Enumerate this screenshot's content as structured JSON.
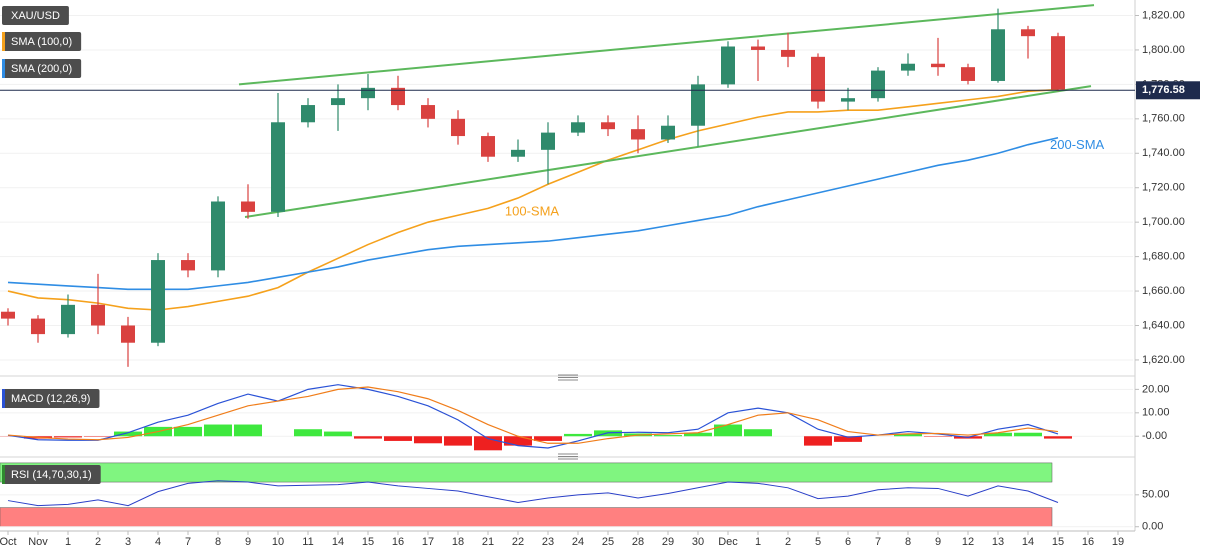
{
  "chart_data": [
    {
      "type": "candlestick",
      "title": "XAU/USD",
      "categories": [
        "Oct",
        "Nov",
        "1",
        "2",
        "3",
        "4",
        "7",
        "8",
        "9",
        "10",
        "11",
        "14",
        "15",
        "16",
        "17",
        "18",
        "21",
        "22",
        "23",
        "24",
        "25",
        "28",
        "29",
        "30",
        "Dec",
        "1",
        "2",
        "5",
        "6",
        "7",
        "8",
        "9",
        "12",
        "13",
        "14",
        "15",
        "16",
        "19"
      ],
      "open": [
        1648,
        1644,
        1635,
        1652,
        1640,
        1630,
        1678,
        1672,
        1712,
        1706,
        1758,
        1768,
        1772,
        1778,
        1768,
        1760,
        1750,
        1738,
        1742,
        1752,
        1758,
        1754,
        1748,
        1756,
        1780,
        1802,
        1800,
        1796,
        1770,
        1772,
        1788,
        1792,
        1790,
        1782,
        1812,
        1808,
        null,
        null
      ],
      "high": [
        1650,
        1646,
        1658,
        1670,
        1645,
        1682,
        1682,
        1715,
        1722,
        1775,
        1772,
        1780,
        1786,
        1785,
        1772,
        1765,
        1752,
        1748,
        1758,
        1762,
        1762,
        1762,
        1762,
        1785,
        1805,
        1806,
        1810,
        1798,
        1778,
        1790,
        1798,
        1807,
        1792,
        1824,
        1814,
        1810,
        null,
        null
      ],
      "low": [
        1640,
        1630,
        1633,
        1635,
        1616,
        1628,
        1668,
        1668,
        1702,
        1703,
        1755,
        1753,
        1765,
        1765,
        1755,
        1745,
        1735,
        1735,
        1722,
        1750,
        1750,
        1740,
        1746,
        1744,
        1778,
        1782,
        1790,
        1766,
        1765,
        1770,
        1785,
        1785,
        1780,
        1781,
        1795,
        1776,
        null,
        null
      ],
      "close": [
        1644,
        1635,
        1652,
        1640,
        1630,
        1678,
        1672,
        1712,
        1706,
        1758,
        1768,
        1772,
        1778,
        1768,
        1760,
        1750,
        1738,
        1742,
        1752,
        1758,
        1754,
        1748,
        1756,
        1780,
        1802,
        1800,
        1796,
        1770,
        1772,
        1788,
        1792,
        1790,
        1782,
        1812,
        1808,
        1777,
        null,
        null
      ],
      "up_color": "#2f8a6c",
      "down_color": "#d9413f",
      "series": [
        {
          "name": "SMA (100,0)",
          "label": "100-SMA",
          "color": "#f5a11c",
          "values": [
            1660,
            1656,
            1655,
            1653,
            1650,
            1649,
            1651,
            1654,
            1657,
            1662,
            1671,
            1679,
            1687,
            1694,
            1700,
            1704,
            1708,
            1714,
            1722,
            1729,
            1736,
            1742,
            1748,
            1753,
            1757,
            1761,
            1764,
            1764,
            1765,
            1765,
            1767,
            1769,
            1771,
            1773,
            1776,
            1777,
            null,
            null
          ]
        },
        {
          "name": "SMA (200,0)",
          "label": "200-SMA",
          "color": "#2f8de4",
          "values": [
            1665,
            1664,
            1663,
            1662,
            1661,
            1661,
            1661,
            1663,
            1665,
            1668,
            1671,
            1674,
            1678,
            1681,
            1684,
            1686,
            1687,
            1688,
            1689,
            1691,
            1693,
            1695,
            1698,
            1701,
            1704,
            1709,
            1713,
            1717,
            1721,
            1725,
            1729,
            1733,
            1736,
            1740,
            1745,
            1749,
            null,
            null
          ]
        }
      ],
      "trendlines": [
        {
          "color": "#5cb85c",
          "x": [
            7.7,
            36.2
          ],
          "y": [
            1780,
            1826
          ]
        },
        {
          "color": "#5cb85c",
          "x": [
            7.9,
            36.1
          ],
          "y": [
            1703,
            1779
          ]
        }
      ],
      "last_price": {
        "value": 1776.58,
        "label": "1,776.58",
        "color": "#1e2b4d"
      },
      "ylim": [
        1613,
        1829
      ],
      "yticks": [
        {
          "value": 1620,
          "label": "1,620.00"
        },
        {
          "value": 1640,
          "label": "1,640.00"
        },
        {
          "value": 1660,
          "label": "1,660.00"
        },
        {
          "value": 1680,
          "label": "1,680.00"
        },
        {
          "value": 1700,
          "label": "1,700.00"
        },
        {
          "value": 1720,
          "label": "1,720.00"
        },
        {
          "value": 1740,
          "label": "1,740.00"
        },
        {
          "value": 1760,
          "label": "1,760.00"
        },
        {
          "value": 1780,
          "label": "1,780.00"
        },
        {
          "value": 1800,
          "label": "1,800.00"
        },
        {
          "value": 1820,
          "label": "1,820.00"
        }
      ],
      "grid": true
    },
    {
      "type": "macd",
      "title": "MACD (12,26,9)",
      "series": [
        {
          "color": "#2a52d6",
          "values": [
            0.4,
            -1.5,
            -1.7,
            -1.7,
            1.5,
            6,
            9,
            14,
            18,
            15,
            20,
            22,
            20,
            17,
            13,
            7,
            -1,
            -4,
            -5,
            -2,
            1.5,
            1.7,
            1.5,
            3,
            10,
            12,
            10,
            3,
            -0.4,
            0.5,
            2,
            1,
            -0.5,
            3,
            5,
            1,
            null,
            null
          ]
        },
        {
          "color": "#f07d1a",
          "values": [
            0.5,
            -0.5,
            -1.2,
            -1.5,
            -0.5,
            2,
            5,
            9,
            13,
            15,
            17,
            20,
            21,
            19,
            16,
            11,
            5,
            0,
            -3,
            -3,
            -1,
            0.5,
            1,
            1.5,
            5,
            9,
            10,
            7,
            2,
            0.5,
            1,
            1.2,
            0.5,
            1.5,
            3.5,
            2,
            null,
            null
          ]
        }
      ],
      "histogram": {
        "up_color": "#3ee83e",
        "down_color": "#ee2020",
        "values": [
          -0.1,
          -1,
          -0.5,
          -0.2,
          2,
          4,
          4,
          5,
          5,
          0,
          3,
          2,
          -1,
          -2,
          -3,
          -4,
          -6,
          -4,
          -2,
          1,
          2.5,
          1.2,
          0.5,
          1.5,
          5,
          3,
          0,
          -4,
          -2.4,
          0,
          1,
          -0.2,
          -1,
          1.5,
          1.5,
          -1,
          null,
          null
        ]
      },
      "ylim": [
        -8,
        24
      ],
      "yticks": [
        {
          "value": 20,
          "label": "20.00"
        },
        {
          "value": 10,
          "label": "10.00"
        },
        {
          "value": 0,
          "label": "-0.00"
        }
      ],
      "grid": true
    },
    {
      "type": "rsi",
      "title": "RSI (14,70,30,1)",
      "color": "#2a3fc8",
      "values": [
        41,
        33,
        35,
        42,
        33,
        55,
        68,
        72,
        70,
        64,
        65,
        66,
        70,
        64,
        60,
        56,
        47,
        38,
        45,
        50,
        53,
        45,
        52,
        61,
        70,
        68,
        61,
        44,
        48,
        58,
        61,
        60,
        48,
        64,
        56,
        38,
        null,
        null
      ],
      "bands": [
        {
          "from": 70,
          "to": 100,
          "color": "#80f580"
        },
        {
          "from": 0,
          "to": 30,
          "color": "#ff8080"
        }
      ],
      "ylim": [
        -2,
        103
      ],
      "yticks": [
        {
          "value": 50,
          "label": "50.00"
        },
        {
          "value": 0,
          "label": "0.00"
        }
      ],
      "grid": true
    }
  ]
}
